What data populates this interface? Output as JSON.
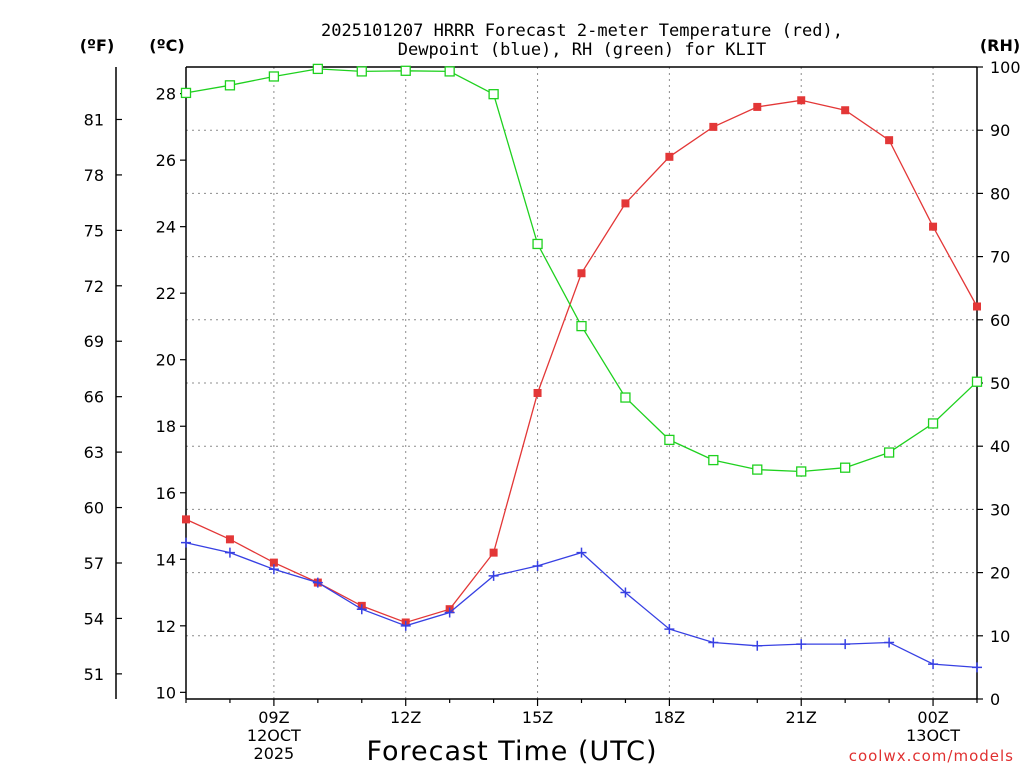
{
  "chart_data": {
    "type": "line",
    "title": "2025101207 HRRR Forecast 2-meter Temperature (red),",
    "subtitle": "Dewpoint (blue), RH (green) for KLIT",
    "xlabel": "Forecast Time (UTC)",
    "watermark": "coolwx.com/models",
    "left_unit_f": "(ºF)",
    "left_unit_c": "(ºC)",
    "right_unit": "(RH)",
    "x_hours": [
      7,
      8,
      9,
      10,
      11,
      12,
      13,
      14,
      15,
      16,
      17,
      18,
      19,
      20,
      21,
      22,
      23,
      24,
      25
    ],
    "x_range": [
      7,
      25
    ],
    "x_ticks": [
      {
        "hour": 9,
        "label": "09Z",
        "sub1": "12OCT",
        "sub2": "2025"
      },
      {
        "hour": 12,
        "label": "12Z",
        "sub1": "",
        "sub2": ""
      },
      {
        "hour": 15,
        "label": "15Z",
        "sub1": "",
        "sub2": ""
      },
      {
        "hour": 18,
        "label": "18Z",
        "sub1": "",
        "sub2": ""
      },
      {
        "hour": 21,
        "label": "21Z",
        "sub1": "",
        "sub2": ""
      },
      {
        "hour": 24,
        "label": "00Z",
        "sub1": "13OCT",
        "sub2": ""
      }
    ],
    "c_range": [
      9.8,
      28.8
    ],
    "c_ticks": [
      10,
      12,
      14,
      16,
      18,
      20,
      22,
      24,
      26,
      28
    ],
    "f_ticks": [
      51,
      54,
      57,
      60,
      63,
      66,
      69,
      72,
      75,
      78,
      81
    ],
    "rh_range": [
      0,
      100
    ],
    "rh_ticks": [
      0,
      10,
      20,
      30,
      40,
      50,
      60,
      70,
      80,
      90,
      100
    ],
    "series": [
      {
        "name": "Temperature",
        "unit": "C",
        "color": "#e33737",
        "marker": "filled-square",
        "values": [
          15.2,
          14.6,
          13.9,
          13.3,
          12.6,
          12.1,
          12.5,
          14.2,
          19.0,
          22.6,
          24.7,
          26.1,
          27.0,
          27.6,
          27.8,
          27.5,
          26.6,
          24.0,
          21.6
        ]
      },
      {
        "name": "Dewpoint",
        "unit": "C",
        "color": "#3740e3",
        "marker": "plus",
        "values": [
          14.5,
          14.2,
          13.7,
          13.3,
          12.5,
          12.0,
          12.4,
          13.5,
          13.8,
          14.2,
          13.0,
          11.9,
          11.5,
          11.4,
          11.45,
          11.45,
          11.5,
          10.85,
          10.75
        ]
      },
      {
        "name": "RH",
        "unit": "%",
        "color": "#1fd11f",
        "marker": "open-square",
        "values": [
          95.9,
          97.1,
          98.5,
          99.7,
          99.3,
          99.4,
          99.3,
          95.7,
          72.0,
          59.0,
          47.7,
          41.0,
          37.8,
          36.3,
          36.0,
          36.6,
          39.0,
          43.6,
          50.2
        ]
      }
    ]
  }
}
